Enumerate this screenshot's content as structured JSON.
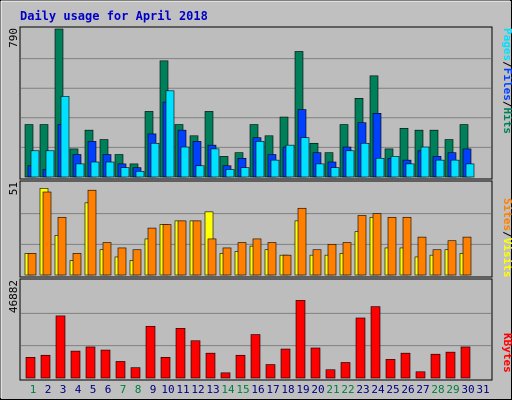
{
  "title": "Daily usage for April 2018",
  "colors": {
    "background": "#c0c0c0",
    "plot_bg": "#bdbdbd",
    "title_text": "#0000c8",
    "weekday_label": "#000080",
    "weekend_label": "#008040",
    "hits": "#00805a",
    "files": "#0040ff",
    "pages": "#00e0ff",
    "visits": "#ffff00",
    "sites": "#ff8000",
    "kbytes": "#ff0000",
    "kbytes_label": "#ff0000"
  },
  "chart_data": [
    {
      "type": "bar",
      "panel": "hits-files-pages",
      "axis_max_label": "790",
      "ylim": [
        0,
        790
      ],
      "grid": true,
      "legend": {
        "hits": "Hits",
        "files": "Files",
        "pages": "Pages",
        "sep": "/"
      },
      "categories": [
        "1",
        "2",
        "3",
        "4",
        "5",
        "6",
        "7",
        "8",
        "9",
        "10",
        "11",
        "12",
        "13",
        "14",
        "15",
        "16",
        "17",
        "18",
        "19",
        "20",
        "21",
        "22",
        "23",
        "24",
        "25",
        "26",
        "27",
        "28",
        "29",
        "30",
        "31"
      ],
      "weekend_days": [
        "1",
        "7",
        "8",
        "14",
        "15",
        "21",
        "22",
        "28",
        "29"
      ],
      "series": [
        {
          "name": "Hits",
          "values": [
            280,
            280,
            790,
            150,
            250,
            200,
            120,
            70,
            350,
            620,
            280,
            220,
            350,
            110,
            130,
            280,
            220,
            320,
            670,
            180,
            130,
            280,
            420,
            540,
            150,
            260,
            250,
            250,
            200,
            280,
            0
          ]
        },
        {
          "name": "Files",
          "values": [
            60,
            40,
            280,
            120,
            190,
            120,
            70,
            50,
            230,
            400,
            250,
            190,
            170,
            60,
            100,
            210,
            120,
            160,
            360,
            130,
            80,
            160,
            290,
            340,
            100,
            90,
            140,
            110,
            130,
            150,
            0
          ]
        },
        {
          "name": "Pages",
          "values": [
            140,
            140,
            430,
            70,
            80,
            80,
            50,
            30,
            180,
            460,
            160,
            60,
            150,
            40,
            50,
            190,
            90,
            170,
            210,
            70,
            50,
            140,
            180,
            100,
            110,
            70,
            160,
            90,
            90,
            70,
            0
          ]
        }
      ]
    },
    {
      "type": "bar",
      "panel": "visits-sites",
      "axis_max_label": "51",
      "ylim": [
        0,
        51
      ],
      "grid": true,
      "legend": {
        "visits": "Visits",
        "sites": "Sites",
        "sep": "/"
      },
      "categories": [
        "1",
        "2",
        "3",
        "4",
        "5",
        "6",
        "7",
        "8",
        "9",
        "10",
        "11",
        "12",
        "13",
        "14",
        "15",
        "16",
        "17",
        "18",
        "19",
        "20",
        "21",
        "22",
        "23",
        "24",
        "25",
        "26",
        "27",
        "28",
        "29",
        "30",
        "31"
      ],
      "series": [
        {
          "name": "Visits",
          "values": [
            12,
            48,
            22,
            8,
            40,
            14,
            10,
            8,
            20,
            28,
            30,
            30,
            35,
            12,
            13,
            16,
            14,
            11,
            30,
            11,
            11,
            12,
            24,
            32,
            15,
            15,
            10,
            11,
            14,
            12,
            0
          ]
        },
        {
          "name": "Sites",
          "values": [
            12,
            46,
            32,
            12,
            47,
            18,
            15,
            14,
            26,
            28,
            30,
            30,
            20,
            15,
            18,
            20,
            18,
            11,
            37,
            14,
            17,
            18,
            33,
            34,
            32,
            32,
            21,
            14,
            19,
            21,
            0
          ]
        }
      ]
    },
    {
      "type": "bar",
      "panel": "kbytes",
      "axis_max_label": "46882",
      "ylim": [
        0,
        46882
      ],
      "grid": true,
      "legend": {
        "kbytes": "KBytes"
      },
      "categories": [
        "1",
        "2",
        "3",
        "4",
        "5",
        "6",
        "7",
        "8",
        "9",
        "10",
        "11",
        "12",
        "13",
        "14",
        "15",
        "16",
        "17",
        "18",
        "19",
        "20",
        "21",
        "22",
        "23",
        "24",
        "25",
        "26",
        "27",
        "28",
        "29",
        "30",
        "31"
      ],
      "series": [
        {
          "name": "KBytes",
          "values": [
            10000,
            11000,
            30000,
            13000,
            15000,
            13500,
            8000,
            5000,
            25000,
            10000,
            24000,
            18000,
            12000,
            2500,
            11000,
            21000,
            6500,
            14000,
            37500,
            14500,
            4000,
            7500,
            29000,
            34500,
            9000,
            12000,
            3000,
            11500,
            12500,
            15000,
            0
          ]
        }
      ]
    }
  ]
}
